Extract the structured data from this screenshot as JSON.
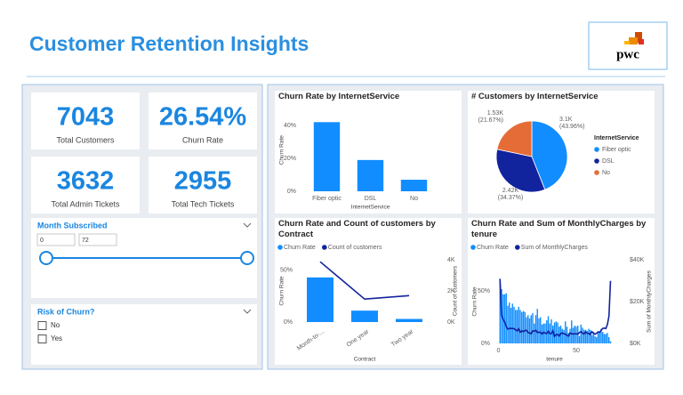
{
  "header": {
    "title": "Customer Retention Insights",
    "logo": "pwc"
  },
  "kpis": [
    {
      "value": 7043,
      "label": "Total Customers"
    },
    {
      "value": {
        "value": 26.54,
        "label": "26.54%"
      },
      "label": "Churn Rate"
    },
    {
      "value": 3632,
      "label": "Total Admin Tickets"
    },
    {
      "value": 2955,
      "label": "Total Tech Tickets"
    }
  ],
  "slicers": {
    "month": {
      "title": "Month Subscribed",
      "range": [
        0,
        72
      ]
    },
    "risk": {
      "title": "Risk of Churn?",
      "options": [
        "No",
        "Yes"
      ]
    }
  },
  "chart_data": [
    {
      "type": "bar",
      "title": "Churn Rate by InternetService",
      "x_label": "InternetService",
      "y_label": "Churn Rate",
      "categories": [
        "Fiber optic",
        "DSL",
        "No"
      ],
      "values": [
        42,
        19,
        7
      ],
      "color": "#118dff",
      "ylim": [
        0,
        50
      ],
      "yticks": [
        {
          "value": 0,
          "label": "0%"
        },
        {
          "value": 20,
          "label": "20%"
        },
        {
          "value": 40,
          "label": "40%"
        }
      ],
      "grid": false
    },
    {
      "type": "pie",
      "title": "# Customers by InternetService",
      "legend_title": "InternetService",
      "categories": [
        "Fiber optic",
        "DSL",
        "No"
      ],
      "values": [
        3100,
        2420,
        1530
      ],
      "value_labels": [
        "3.1K",
        "2.42K",
        "1.53K"
      ],
      "share_labels": [
        "(43.96%)",
        "(34.37%)",
        "(21.67%)"
      ],
      "colors": [
        "#118dff",
        "#12239e",
        "#e66c37"
      ],
      "legend": "right"
    },
    {
      "type": "combo",
      "title": "Churn Rate and Count of customers by Contract",
      "x_label": "Contract",
      "y_label": "Churn Rate",
      "y2_label": "Count of customers",
      "categories": [
        "Month-to-...",
        "One year",
        "Two year"
      ],
      "series": [
        {
          "name": "Churn Rate",
          "mark": "bar",
          "color": "#118dff",
          "values": [
            43,
            11,
            3
          ]
        },
        {
          "name": "Count of customers",
          "mark": "line",
          "axis": "y2",
          "color": "#12239e",
          "values": [
            3875,
            1473,
            1695
          ]
        }
      ],
      "ylim": [
        0,
        60
      ],
      "yticks": [
        {
          "value": 0,
          "label": "0%"
        },
        {
          "value": 50,
          "label": "50%"
        }
      ],
      "y2lim": [
        0,
        4000
      ],
      "y2ticks": [
        {
          "value": 0,
          "label": "0K"
        },
        {
          "value": 2000,
          "label": "2K"
        },
        {
          "value": 4000,
          "label": "4K"
        }
      ],
      "legend": "top-left"
    },
    {
      "type": "combo",
      "title": "Churn Rate and Sum of MonthlyCharges by tenure",
      "x_label": "tenure",
      "y_label": "Churn Rate",
      "y2_label": "Sum of MonthlyCharges",
      "x": [
        1,
        2,
        3,
        4,
        5,
        6,
        7,
        8,
        9,
        10,
        11,
        12,
        13,
        14,
        15,
        16,
        17,
        18,
        19,
        20,
        21,
        22,
        23,
        24,
        25,
        26,
        27,
        28,
        29,
        30,
        31,
        32,
        33,
        34,
        35,
        36,
        37,
        38,
        39,
        40,
        41,
        42,
        43,
        44,
        45,
        46,
        47,
        48,
        49,
        50,
        51,
        52,
        53,
        54,
        55,
        56,
        57,
        58,
        59,
        60,
        61,
        62,
        63,
        64,
        65,
        66,
        67,
        68,
        69,
        70,
        71,
        72
      ],
      "series": [
        {
          "name": "Churn Rate",
          "mark": "bar",
          "color": "#118dff",
          "values": [
            62,
            52,
            47,
            47,
            48,
            36,
            39,
            34,
            38,
            35,
            32,
            32,
            35,
            32,
            30,
            31,
            30,
            25,
            27,
            24,
            27,
            29,
            19,
            27,
            33,
            24,
            25,
            18,
            19,
            19,
            22,
            26,
            19,
            23,
            17,
            20,
            21,
            20,
            16,
            17,
            14,
            13,
            21,
            16,
            10,
            14,
            22,
            15,
            17,
            16,
            17,
            7,
            18,
            15,
            13,
            13,
            12,
            14,
            13,
            8,
            11,
            7,
            6,
            10,
            11,
            14,
            11,
            9,
            9,
            10,
            6,
            2
          ]
        },
        {
          "name": "Sum of MonthlyCharges",
          "mark": "line",
          "axis": "y2",
          "color": "#12239e",
          "values": [
            30800,
            13600,
            11500,
            10200,
            8100,
            6800,
            7100,
            7200,
            7100,
            7100,
            6500,
            6000,
            7000,
            5300,
            6000,
            5600,
            6200,
            6300,
            5200,
            5000,
            4600,
            6000,
            5800,
            6300,
            5200,
            5400,
            5300,
            4500,
            5300,
            4900,
            4700,
            5800,
            4600,
            4700,
            6100,
            3400,
            4200,
            4300,
            3500,
            4700,
            5000,
            4600,
            4500,
            3800,
            3500,
            5000,
            4600,
            4500,
            4600,
            4600,
            4400,
            5200,
            5600,
            4900,
            4500,
            5500,
            4800,
            4800,
            4200,
            5600,
            5000,
            4400,
            4800,
            5500,
            5300,
            6300,
            7200,
            7300,
            7100,
            9100,
            13000,
            29900
          ]
        }
      ],
      "xlim": [
        -2,
        74
      ],
      "xticks": [
        0,
        50
      ],
      "ylim": [
        0,
        80
      ],
      "yticks": [
        {
          "value": 0,
          "label": "0%"
        },
        {
          "value": 50,
          "label": "50%"
        }
      ],
      "y2lim": [
        0,
        40000
      ],
      "y2ticks": [
        {
          "value": 0,
          "label": "$0K"
        },
        {
          "value": 20000,
          "label": "$20K"
        },
        {
          "value": 40000,
          "label": "$40K"
        }
      ],
      "legend": "top-left"
    }
  ]
}
